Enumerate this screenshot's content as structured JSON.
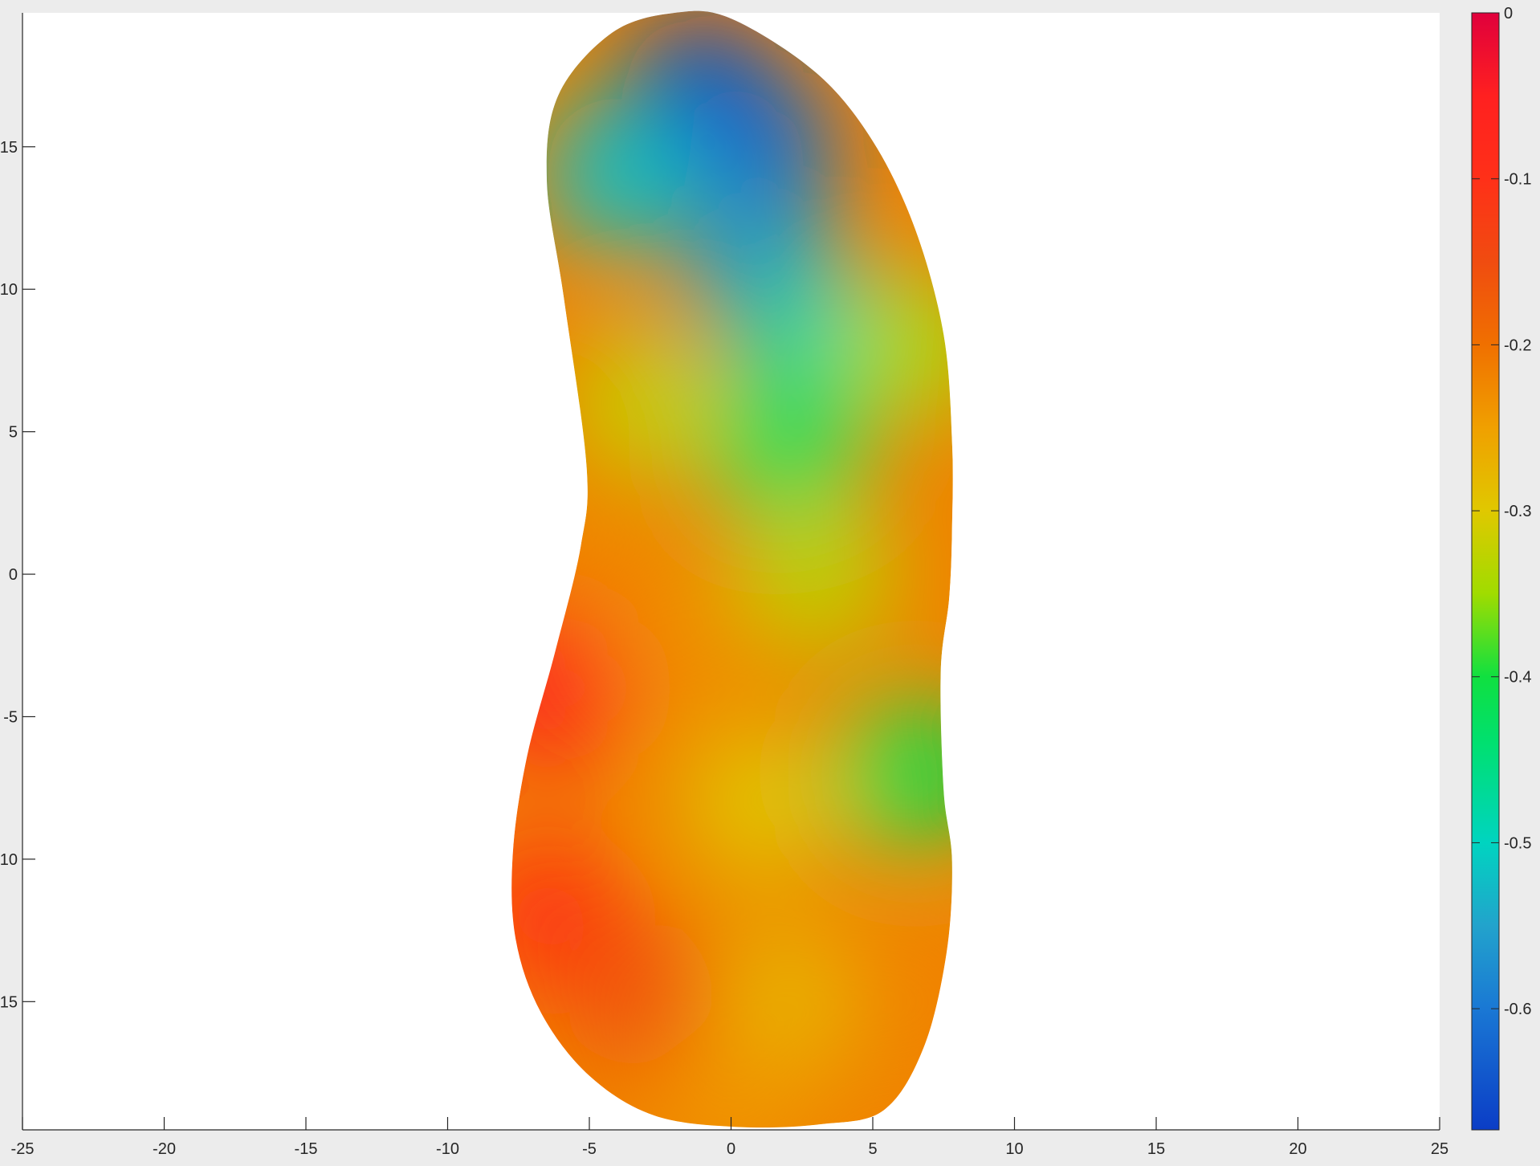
{
  "chart_data": {
    "type": "heatmap",
    "title": "",
    "xlabel": "",
    "ylabel": "",
    "xlim": [
      -25,
      25
    ],
    "ylim": [
      -19.5,
      19.7
    ],
    "xticks": [
      -25,
      -20,
      -15,
      -10,
      -5,
      0,
      5,
      10,
      15,
      20,
      25
    ],
    "xtick_labels": [
      "-25",
      "-20",
      "-15",
      "-10",
      "-5",
      "0",
      "5",
      "10",
      "15",
      "20",
      "25"
    ],
    "yticks": [
      -15,
      -10,
      -5,
      0,
      5,
      10,
      15
    ],
    "ytick_labels": [
      "-15",
      "-10",
      "-5",
      "0",
      "5",
      "10",
      "15"
    ],
    "grid": false,
    "colormap": "jet-like (red high, blue low)",
    "colorbar": {
      "position": "right",
      "range": [
        -0.673,
        0.0
      ],
      "ticks": [
        0,
        -0.1,
        -0.2,
        -0.3,
        -0.4,
        -0.5,
        -0.6
      ],
      "tick_labels": [
        "0",
        "-0.1",
        "-0.2",
        "-0.3",
        "-0.4",
        "-0.5",
        "-0.6"
      ],
      "stops": [
        {
          "value": -0.673,
          "color": "#0b3dc6"
        },
        {
          "value": -0.6,
          "color": "#1a78d4"
        },
        {
          "value": -0.55,
          "color": "#22a3cc"
        },
        {
          "value": -0.5,
          "color": "#00d4c0"
        },
        {
          "value": -0.44,
          "color": "#00e070"
        },
        {
          "value": -0.4,
          "color": "#10e040"
        },
        {
          "value": -0.35,
          "color": "#a0dc00"
        },
        {
          "value": -0.3,
          "color": "#e0c800"
        },
        {
          "value": -0.25,
          "color": "#f0a000"
        },
        {
          "value": -0.2,
          "color": "#f07000"
        },
        {
          "value": -0.15,
          "color": "#f04c10"
        },
        {
          "value": -0.1,
          "color": "#ff3018"
        },
        {
          "value": -0.05,
          "color": "#ff2020"
        },
        {
          "value": 0.0,
          "color": "#e0003c"
        }
      ]
    },
    "region_outline": {
      "description": "closed boundary of the colored region, in data units",
      "points": [
        [
          -2,
          19.7
        ],
        [
          0,
          19.5
        ],
        [
          3,
          17.6
        ],
        [
          5,
          15.2
        ],
        [
          6.5,
          12.1
        ],
        [
          7.5,
          8.4
        ],
        [
          7.8,
          4.6
        ],
        [
          7.8,
          1.7
        ],
        [
          7.7,
          -0.8
        ],
        [
          7.4,
          -3.4
        ],
        [
          7.5,
          -7.6
        ],
        [
          7.8,
          -10.1
        ],
        [
          7.6,
          -13.3
        ],
        [
          6.8,
          -16.6
        ],
        [
          5.4,
          -18.8
        ],
        [
          3.2,
          -19.3
        ],
        [
          0.3,
          -19.4
        ],
        [
          -2.7,
          -19.0
        ],
        [
          -5,
          -17.6
        ],
        [
          -6.7,
          -15.4
        ],
        [
          -7.6,
          -12.8
        ],
        [
          -7.7,
          -9.8
        ],
        [
          -7.2,
          -6.4
        ],
        [
          -6.2,
          -2.7
        ],
        [
          -5.3,
          1.0
        ],
        [
          -5.1,
          3.8
        ],
        [
          -5.9,
          9.7
        ],
        [
          -6.5,
          13.8
        ],
        [
          -6.1,
          16.8
        ],
        [
          -4.2,
          19.0
        ]
      ]
    },
    "field_samples": [
      {
        "x": -1,
        "y": 17,
        "v": -0.66
      },
      {
        "x": 1,
        "y": 15,
        "v": -0.62
      },
      {
        "x": 1,
        "y": 11,
        "v": -0.56
      },
      {
        "x": -4,
        "y": 14,
        "v": -0.52
      },
      {
        "x": 3,
        "y": 8,
        "v": -0.48
      },
      {
        "x": 2,
        "y": 4.5,
        "v": -0.42
      },
      {
        "x": -3,
        "y": 6,
        "v": -0.32
      },
      {
        "x": 6.5,
        "y": 8,
        "v": -0.34
      },
      {
        "x": 3,
        "y": 0,
        "v": -0.33
      },
      {
        "x": 6.5,
        "y": -7,
        "v": -0.41
      },
      {
        "x": 1,
        "y": -8,
        "v": -0.3
      },
      {
        "x": -2,
        "y": -2,
        "v": -0.23
      },
      {
        "x": -6.5,
        "y": -4,
        "v": -0.05
      },
      {
        "x": -6.5,
        "y": -12,
        "v": -0.1
      },
      {
        "x": -3,
        "y": -15,
        "v": -0.16
      },
      {
        "x": 2,
        "y": -15,
        "v": -0.28
      },
      {
        "x": 6.5,
        "y": -15,
        "v": -0.22
      },
      {
        "x": 0,
        "y": -18.5,
        "v": -0.24
      }
    ]
  }
}
